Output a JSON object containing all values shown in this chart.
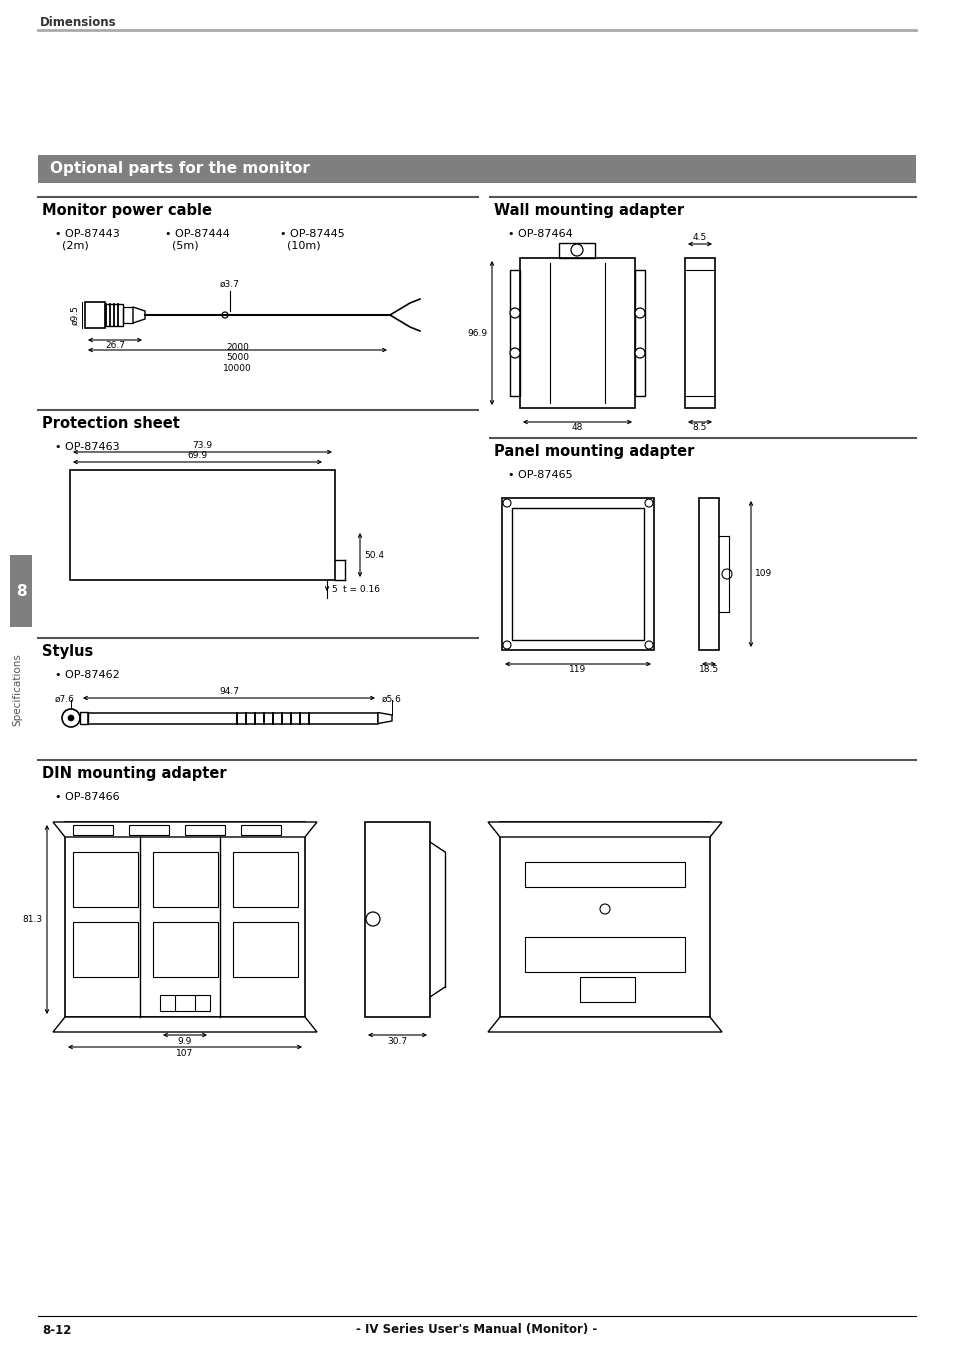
{
  "page_bg": "#ffffff",
  "header_text": "Dimensions",
  "header_line_color": "#aaaaaa",
  "section_header_bg": "#7f7f7f",
  "section_header_text": "Optional parts for the monitor",
  "section_header_text_color": "#ffffff",
  "subsection_line_color": "#555555",
  "left_tab_bg": "#7f7f7f",
  "left_tab_text": "8",
  "left_tab_text_color": "#ffffff",
  "left_side_text": "Specifications",
  "footer_text_left": "8-12",
  "footer_text_center": "- IV Series User's Manual (Monitor) -"
}
